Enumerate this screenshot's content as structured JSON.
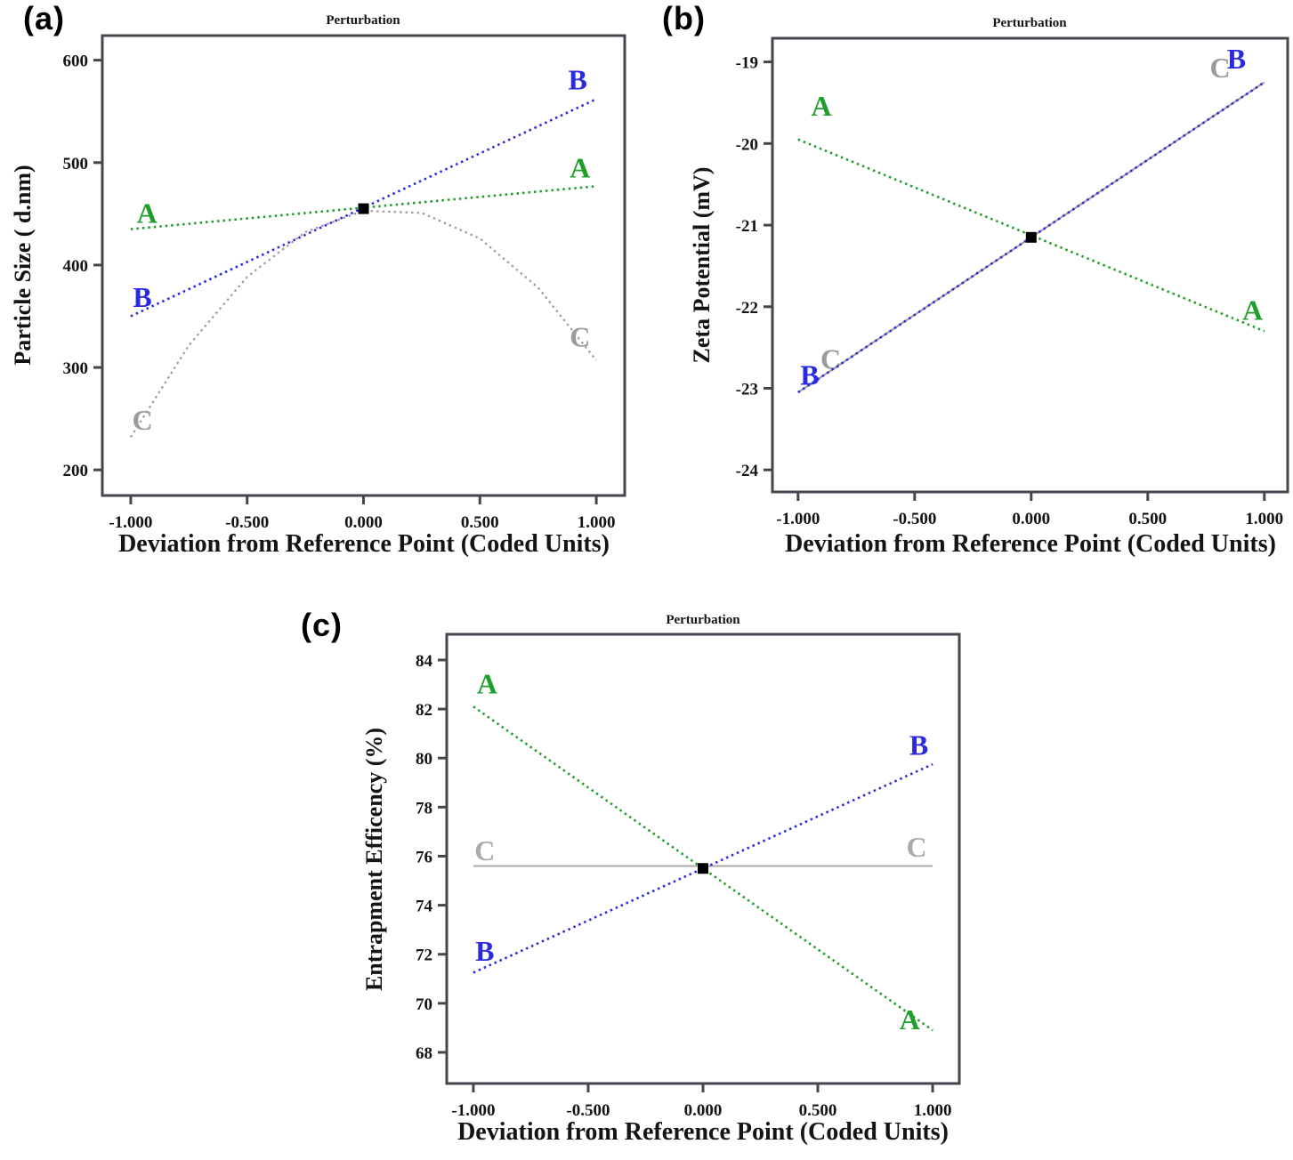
{
  "figure": {
    "background": "#ffffff",
    "shared_x_axis_label": "Deviation from Reference Point (Coded Units)"
  },
  "panels": [
    {
      "id": "a",
      "letter": "(a)"
    },
    {
      "id": "b",
      "letter": "(b)"
    },
    {
      "id": "c",
      "letter": "(c)"
    }
  ],
  "colors": {
    "factor_a_green": "#1f9e2c",
    "factor_b_blue": "#2a2ae0",
    "factor_c_gray": "#9b9b9b",
    "frame": "#45454e",
    "text": "#141414",
    "reference_point": "#000000"
  },
  "chart_data": [
    {
      "id": "a",
      "type": "line",
      "title": "Perturbation",
      "xlabel": "Deviation from Reference Point (Coded Units)",
      "ylabel": "Particle Size ( d.nm)",
      "xlim": [
        -1.122,
        1.122
      ],
      "ylim": [
        175,
        624
      ],
      "x_ticks": [
        {
          "v": -1,
          "label": "-1.000"
        },
        {
          "v": -0.5,
          "label": "-0.500"
        },
        {
          "v": 0,
          "label": "0.000"
        },
        {
          "v": 0.5,
          "label": "0.500"
        },
        {
          "v": 1,
          "label": "1.000"
        }
      ],
      "y_ticks": [
        {
          "v": 200,
          "label": "200"
        },
        {
          "v": 300,
          "label": "300"
        },
        {
          "v": 400,
          "label": "400"
        },
        {
          "v": 500,
          "label": "500"
        },
        {
          "v": 600,
          "label": "600"
        }
      ],
      "reference_point": {
        "x": 0,
        "y": 455
      },
      "series": [
        {
          "name": "C",
          "color": "#9b9b9b",
          "style": "dashed",
          "width": 2.2,
          "points": [
            [
              -1,
              232
            ],
            [
              -0.75,
              321.7
            ],
            [
              -0.5,
              388.4
            ],
            [
              -0.25,
              432.2
            ],
            [
              0,
              453
            ],
            [
              0.25,
              450.9
            ],
            [
              0.5,
              425.9
            ],
            [
              0.75,
              377.9
            ],
            [
              1,
              307
            ]
          ],
          "labels": [
            {
              "x": -0.95,
              "y": 248
            },
            {
              "x": 0.93,
              "y": 329
            }
          ]
        },
        {
          "name": "A",
          "color": "#1f9e2c",
          "style": "dashed",
          "width": 2.6,
          "points": [
            [
              -1,
              435
            ],
            [
              1,
              477
            ]
          ],
          "labels": [
            {
              "x": -0.93,
              "y": 450
            },
            {
              "x": 0.93,
              "y": 494
            }
          ]
        },
        {
          "name": "B",
          "color": "#2a2ae0",
          "style": "dashed",
          "width": 2.6,
          "points": [
            [
              -1,
              350
            ],
            [
              1,
              562
            ]
          ],
          "labels": [
            {
              "x": -0.95,
              "y": 368
            },
            {
              "x": 0.92,
              "y": 580
            }
          ]
        }
      ]
    },
    {
      "id": "b",
      "type": "line",
      "title": "Perturbation",
      "xlabel": "Deviation from Reference Point (Coded Units)",
      "ylabel": "Zeta Potential (mV)",
      "xlim": [
        -1.11,
        1.1
      ],
      "ylim": [
        -24.27,
        -18.71
      ],
      "x_ticks": [
        {
          "v": -1,
          "label": "-1.000"
        },
        {
          "v": -0.5,
          "label": "-0.500"
        },
        {
          "v": 0,
          "label": "0.000"
        },
        {
          "v": 0.5,
          "label": "0.500"
        },
        {
          "v": 1,
          "label": "1.000"
        }
      ],
      "y_ticks": [
        {
          "v": -19,
          "label": "-19"
        },
        {
          "v": -20,
          "label": "-20"
        },
        {
          "v": -21,
          "label": "-21"
        },
        {
          "v": -22,
          "label": "-22"
        },
        {
          "v": -23,
          "label": "-23"
        },
        {
          "v": -24,
          "label": "-24"
        }
      ],
      "reference_point": {
        "x": 0,
        "y": -21.15
      },
      "series": [
        {
          "name": "C",
          "color": "#9b9b9b",
          "style": "solid",
          "width": 2,
          "points": [
            [
              -1,
              -23.05
            ],
            [
              1,
              -19.25
            ]
          ],
          "labels": [
            {
              "x": -0.86,
              "y": -22.65
            },
            {
              "x": 0.81,
              "y": -19.08
            }
          ]
        },
        {
          "name": "A",
          "color": "#1f9e2c",
          "style": "dashed",
          "width": 2.6,
          "points": [
            [
              -1,
              -19.95
            ],
            [
              1,
              -22.3
            ]
          ],
          "labels": [
            {
              "x": -0.9,
              "y": -19.55
            },
            {
              "x": 0.95,
              "y": -22.05
            }
          ]
        },
        {
          "name": "B",
          "color": "#2a2ae0",
          "style": "dashed",
          "width": 2.6,
          "points": [
            [
              -1,
              -23.05
            ],
            [
              1,
              -19.25
            ]
          ],
          "labels": [
            {
              "x": -0.95,
              "y": -22.85
            },
            {
              "x": 0.88,
              "y": -18.97
            }
          ]
        }
      ]
    },
    {
      "id": "c",
      "type": "line",
      "title": "Perturbation",
      "xlabel": "Deviation from Reference Point (Coded Units)",
      "ylabel": "Entrapment Efficency (%)",
      "xlim": [
        -1.116,
        1.116
      ],
      "ylim": [
        66.73,
        85.05
      ],
      "x_ticks": [
        {
          "v": -1,
          "label": "-1.000"
        },
        {
          "v": -0.5,
          "label": "-0.500"
        },
        {
          "v": 0,
          "label": "0.000"
        },
        {
          "v": 0.5,
          "label": "0.500"
        },
        {
          "v": 1,
          "label": "1.000"
        }
      ],
      "y_ticks": [
        {
          "v": 68,
          "label": "68"
        },
        {
          "v": 70,
          "label": "70"
        },
        {
          "v": 72,
          "label": "72"
        },
        {
          "v": 74,
          "label": "74"
        },
        {
          "v": 76,
          "label": "76"
        },
        {
          "v": 78,
          "label": "78"
        },
        {
          "v": 80,
          "label": "80"
        },
        {
          "v": 82,
          "label": "82"
        },
        {
          "v": 84,
          "label": "84"
        }
      ],
      "reference_point": {
        "x": 0,
        "y": 75.5
      },
      "series": [
        {
          "name": "C",
          "color": "#aaaaaa",
          "style": "solid",
          "width": 2,
          "points": [
            [
              -1,
              75.6
            ],
            [
              1,
              75.6
            ]
          ],
          "labels": [
            {
              "x": -0.95,
              "y": 76.2
            },
            {
              "x": 0.93,
              "y": 76.35
            }
          ]
        },
        {
          "name": "A",
          "color": "#1f9e2c",
          "style": "dashed",
          "width": 2.6,
          "points": [
            [
              -1,
              82.1
            ],
            [
              1,
              68.9
            ]
          ],
          "labels": [
            {
              "x": -0.94,
              "y": 83.0
            },
            {
              "x": 0.9,
              "y": 69.3
            }
          ]
        },
        {
          "name": "B",
          "color": "#2a2ae0",
          "style": "dashed",
          "width": 2.6,
          "points": [
            [
              -1,
              71.25
            ],
            [
              1,
              79.75
            ]
          ],
          "labels": [
            {
              "x": -0.95,
              "y": 72.1
            },
            {
              "x": 0.94,
              "y": 80.5
            }
          ]
        }
      ]
    }
  ]
}
